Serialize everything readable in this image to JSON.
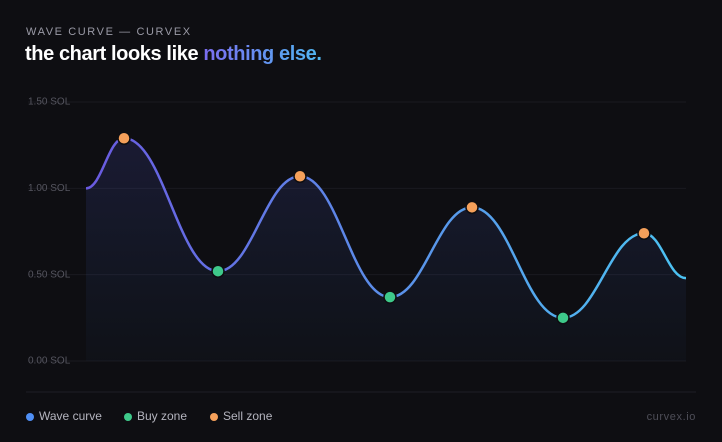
{
  "header": {
    "eyebrow": "WAVE CURVE — CURVEX",
    "title": "the chart looks like",
    "highlight": "nothing else."
  },
  "chart_data": {
    "type": "line",
    "xlim": [
      0,
      600
    ],
    "ylim": [
      0,
      1.5
    ],
    "yticks": [
      {
        "value": 0,
        "label": "0.00 SOL"
      },
      {
        "value": 0.5,
        "label": "0.50 SOL"
      },
      {
        "value": 1,
        "label": "1.00 SOL"
      },
      {
        "value": 1.5,
        "label": "1.50 SOL"
      }
    ],
    "grid": true,
    "gradient": [
      "#6a5ae0",
      "#4cc3f2"
    ],
    "series": [
      {
        "name": "Wave curve",
        "color": "#4f8ff5",
        "x": [
          0,
          38,
          132,
          214,
          304,
          386,
          477,
          558,
          600
        ],
        "values": [
          1.0,
          1.29,
          0.52,
          1.07,
          0.37,
          0.89,
          0.25,
          0.74,
          0.48
        ]
      },
      {
        "name": "Buy zone",
        "color": "#3ec98a",
        "x": [
          132,
          304,
          477
        ],
        "values": [
          0.52,
          0.37,
          0.25
        ]
      },
      {
        "name": "Sell zone",
        "color": "#f5a05a",
        "x": [
          38,
          214,
          386,
          558
        ],
        "values": [
          1.29,
          1.07,
          0.89,
          0.74
        ]
      }
    ]
  },
  "footer": {
    "brand": "curvex.io"
  }
}
